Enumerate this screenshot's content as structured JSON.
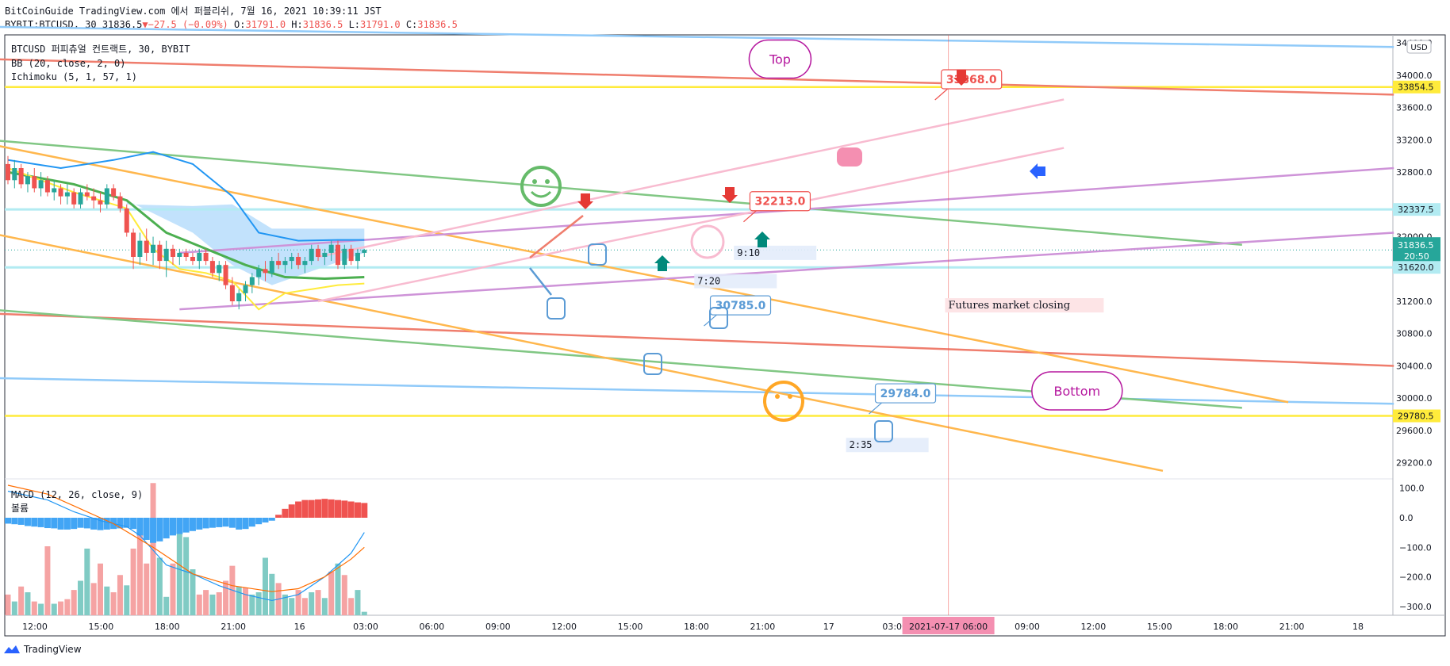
{
  "header": {
    "publisher_line": "BitCoinGuide TradingView.com 에서 퍼블리쉬, 7월 16, 2021 10:39:11 JST",
    "symbol": "BYBIT:BTCUSD, 30",
    "last": "31836.5",
    "change": "−27.5 (−0.09%)",
    "o_label": "O:",
    "o": "31791.0",
    "h_label": "H:",
    "h": "31836.5",
    "l_label": "L:",
    "l": "31791.0",
    "c_label": "C:",
    "c": "31836.5"
  },
  "legend": {
    "title": "BTCUSD 퍼피츄얼 컨트랙트, 30, BYBIT",
    "bb": "BB (20, close, 2, 0)",
    "ichimoku": "Ichimoku (5, 1, 57, 1)",
    "macd": "MACD (12, 26, close, 9)",
    "volume": "볼륨"
  },
  "currency": "USD",
  "footer": {
    "brand": "TradingView"
  },
  "colors": {
    "up": "#26a69a",
    "down": "#ef5350",
    "bb_mid": "#4caf50",
    "bb_band": "#2196f3",
    "ichimoku": "#ffeb3b",
    "kumo": "#90caf9",
    "hline": "#ffeb3b",
    "cyan_line": "#b2ebf2"
  },
  "chart_data": {
    "type": "candlestick",
    "x_tick_labels": [
      "12:00",
      "15:00",
      "18:00",
      "21:00",
      "16",
      "03:00",
      "06:00",
      "09:00",
      "12:00",
      "15:00",
      "18:00",
      "21:00",
      "17",
      "03:00",
      "06:00",
      "09:00",
      "12:00",
      "15:00",
      "18:00",
      "21:00",
      "18"
    ],
    "crosshair_time_label": "2021-07-17 06:00",
    "y_tick_labels": [
      34400.0,
      34000.0,
      33600.0,
      33200.0,
      32800.0,
      32000.0,
      31200.0,
      30800.0,
      30400.0,
      30000.0,
      29600.0,
      29200.0
    ],
    "y_range": [
      29000,
      34500
    ],
    "price_labels": [
      {
        "value": "33854.5",
        "kind": "horizontal-line"
      },
      {
        "value": "32337.5",
        "kind": "horizontal-line"
      },
      {
        "value": "31836.5",
        "kind": "last-price",
        "countdown": "20:50"
      },
      {
        "value": "31620.0",
        "kind": "horizontal-line"
      },
      {
        "value": "29780.5",
        "kind": "horizontal-line"
      }
    ],
    "candles": [
      {
        "o": 32900,
        "h": 33000,
        "l": 32650,
        "c": 32700
      },
      {
        "o": 32700,
        "h": 32950,
        "l": 32600,
        "c": 32850
      },
      {
        "o": 32850,
        "h": 32900,
        "l": 32600,
        "c": 32650
      },
      {
        "o": 32650,
        "h": 32800,
        "l": 32550,
        "c": 32750
      },
      {
        "o": 32750,
        "h": 32850,
        "l": 32550,
        "c": 32600
      },
      {
        "o": 32600,
        "h": 32800,
        "l": 32500,
        "c": 32700
      },
      {
        "o": 32700,
        "h": 32750,
        "l": 32500,
        "c": 32550
      },
      {
        "o": 32550,
        "h": 32700,
        "l": 32450,
        "c": 32600
      },
      {
        "o": 32600,
        "h": 32650,
        "l": 32400,
        "c": 32500
      },
      {
        "o": 32500,
        "h": 32650,
        "l": 32400,
        "c": 32550
      },
      {
        "o": 32550,
        "h": 32600,
        "l": 32350,
        "c": 32400
      },
      {
        "o": 32400,
        "h": 32600,
        "l": 32350,
        "c": 32550
      },
      {
        "o": 32550,
        "h": 32650,
        "l": 32450,
        "c": 32500
      },
      {
        "o": 32500,
        "h": 32600,
        "l": 32350,
        "c": 32450
      },
      {
        "o": 32450,
        "h": 32550,
        "l": 32300,
        "c": 32400
      },
      {
        "o": 32400,
        "h": 32650,
        "l": 32350,
        "c": 32600
      },
      {
        "o": 32600,
        "h": 32650,
        "l": 32450,
        "c": 32500
      },
      {
        "o": 32500,
        "h": 32550,
        "l": 32300,
        "c": 32350
      },
      {
        "o": 32350,
        "h": 32400,
        "l": 32000,
        "c": 32050
      },
      {
        "o": 32050,
        "h": 32100,
        "l": 31600,
        "c": 31750
      },
      {
        "o": 31750,
        "h": 32050,
        "l": 31650,
        "c": 31950
      },
      {
        "o": 31950,
        "h": 32100,
        "l": 31700,
        "c": 31800
      },
      {
        "o": 31800,
        "h": 32000,
        "l": 31650,
        "c": 31900
      },
      {
        "o": 31900,
        "h": 31950,
        "l": 31600,
        "c": 31700
      },
      {
        "o": 31700,
        "h": 31950,
        "l": 31500,
        "c": 31850
      },
      {
        "o": 31850,
        "h": 31900,
        "l": 31650,
        "c": 31750
      },
      {
        "o": 31750,
        "h": 31850,
        "l": 31650,
        "c": 31800
      },
      {
        "o": 31800,
        "h": 31850,
        "l": 31700,
        "c": 31750
      },
      {
        "o": 31750,
        "h": 31800,
        "l": 31650,
        "c": 31700
      },
      {
        "o": 31700,
        "h": 31850,
        "l": 31600,
        "c": 31800
      },
      {
        "o": 31800,
        "h": 31850,
        "l": 31650,
        "c": 31700
      },
      {
        "o": 31700,
        "h": 31750,
        "l": 31500,
        "c": 31550
      },
      {
        "o": 31550,
        "h": 31700,
        "l": 31450,
        "c": 31650
      },
      {
        "o": 31650,
        "h": 31700,
        "l": 31350,
        "c": 31400
      },
      {
        "o": 31400,
        "h": 31500,
        "l": 31150,
        "c": 31200
      },
      {
        "o": 31200,
        "h": 31350,
        "l": 31100,
        "c": 31300
      },
      {
        "o": 31300,
        "h": 31450,
        "l": 31200,
        "c": 31400
      },
      {
        "o": 31400,
        "h": 31550,
        "l": 31300,
        "c": 31500
      },
      {
        "o": 31500,
        "h": 31650,
        "l": 31400,
        "c": 31600
      },
      {
        "o": 31600,
        "h": 31700,
        "l": 31450,
        "c": 31550
      },
      {
        "o": 31550,
        "h": 31750,
        "l": 31500,
        "c": 31700
      },
      {
        "o": 31700,
        "h": 31800,
        "l": 31600,
        "c": 31650
      },
      {
        "o": 31650,
        "h": 31750,
        "l": 31550,
        "c": 31700
      },
      {
        "o": 31700,
        "h": 31800,
        "l": 31600,
        "c": 31750
      },
      {
        "o": 31750,
        "h": 31800,
        "l": 31600,
        "c": 31650
      },
      {
        "o": 31650,
        "h": 31750,
        "l": 31550,
        "c": 31700
      },
      {
        "o": 31700,
        "h": 31900,
        "l": 31650,
        "c": 31850
      },
      {
        "o": 31850,
        "h": 31900,
        "l": 31700,
        "c": 31750
      },
      {
        "o": 31750,
        "h": 31850,
        "l": 31650,
        "c": 31800
      },
      {
        "o": 31800,
        "h": 31950,
        "l": 31700,
        "c": 31900
      },
      {
        "o": 31900,
        "h": 31950,
        "l": 31600,
        "c": 31650
      },
      {
        "o": 31650,
        "h": 31900,
        "l": 31600,
        "c": 31850
      },
      {
        "o": 31850,
        "h": 31900,
        "l": 31650,
        "c": 31700
      },
      {
        "o": 31700,
        "h": 31850,
        "l": 31600,
        "c": 31800
      },
      {
        "o": 31800,
        "h": 31850,
        "l": 31750,
        "c": 31836.5
      }
    ],
    "bb_mid": [
      [
        0,
        32800
      ],
      [
        10,
        32650
      ],
      [
        18,
        32450
      ],
      [
        24,
        32050
      ],
      [
        30,
        31850
      ],
      [
        36,
        31650
      ],
      [
        42,
        31500
      ],
      [
        48,
        31480
      ],
      [
        54,
        31500
      ]
    ],
    "bb_upper": [
      [
        0,
        32950
      ],
      [
        8,
        32850
      ],
      [
        16,
        32950
      ],
      [
        22,
        33050
      ],
      [
        28,
        32900
      ],
      [
        34,
        32500
      ],
      [
        38,
        32050
      ],
      [
        44,
        31950
      ],
      [
        50,
        31960
      ],
      [
        54,
        31960
      ]
    ],
    "ichimoku_line": [
      [
        0,
        32850
      ],
      [
        10,
        32550
      ],
      [
        18,
        32350
      ],
      [
        22,
        31850
      ],
      [
        26,
        31600
      ],
      [
        30,
        31550
      ],
      [
        34,
        31450
      ],
      [
        38,
        31100
      ],
      [
        42,
        31300
      ],
      [
        46,
        31350
      ],
      [
        50,
        31400
      ],
      [
        54,
        31420
      ]
    ],
    "kumo": {
      "top": [
        [
          18,
          32400
        ],
        [
          28,
          32380
        ],
        [
          34,
          32400
        ],
        [
          40,
          32100
        ],
        [
          54,
          32100
        ]
      ],
      "bottom": [
        [
          18,
          32450
        ],
        [
          28,
          32050
        ],
        [
          34,
          31650
        ],
        [
          40,
          31400
        ],
        [
          54,
          31800
        ]
      ]
    },
    "trendlines": [
      {
        "name": "blue-top-line",
        "color": "#90caf9",
        "from": [
          -3,
          34600
        ],
        "to": [
          210,
          34350
        ]
      },
      {
        "name": "red-top-line",
        "color": "#ef7d6d",
        "from": [
          -3,
          34200
        ],
        "to": [
          210,
          33760
        ]
      },
      {
        "name": "blue-bottom-line",
        "color": "#90caf9",
        "from": [
          -3,
          30250
        ],
        "to": [
          210,
          29930
        ]
      },
      {
        "name": "red-mid-line",
        "color": "#ef7d6d",
        "from": [
          -3,
          31050
        ],
        "to": [
          210,
          30400
        ]
      },
      {
        "name": "green-upper-line",
        "color": "#81c784",
        "from": [
          -3,
          33200
        ],
        "to": [
          187,
          31900
        ]
      },
      {
        "name": "green-lower-line",
        "color": "#81c784",
        "from": [
          -3,
          31100
        ],
        "to": [
          187,
          29880
        ]
      },
      {
        "name": "orange-upper-line",
        "color": "#ffb74d",
        "from": [
          -3,
          33150
        ],
        "to": [
          194,
          29950
        ]
      },
      {
        "name": "orange-lower-line",
        "color": "#ffb74d",
        "from": [
          -3,
          32050
        ],
        "to": [
          175,
          29100
        ]
      },
      {
        "name": "purple-upper-line",
        "color": "#ce93d8",
        "from": [
          26,
          31800
        ],
        "to": [
          210,
          32850
        ]
      },
      {
        "name": "purple-lower-line",
        "color": "#ce93d8",
        "from": [
          26,
          31100
        ],
        "to": [
          210,
          32050
        ]
      },
      {
        "name": "pink-upper-line",
        "color": "#f8bbd0",
        "from": [
          47,
          31750
        ],
        "to": [
          160,
          33700
        ]
      },
      {
        "name": "pink-lower-line",
        "color": "#f8bbd0",
        "from": [
          47,
          31200
        ],
        "to": [
          160,
          33100
        ]
      }
    ],
    "hlines": [
      33854.5,
      29780.5
    ],
    "cyan_lines": [
      32337.5,
      31620.0
    ],
    "crosshair_x": 142.5,
    "annotations": {
      "price_callouts": [
        {
          "text": "33868.0",
          "color": "#ef5350",
          "x": 146,
          "y": 33950
        },
        {
          "text": "32213.0",
          "color": "#ef5350",
          "x": 117,
          "y": 32440
        },
        {
          "text": "30785.0",
          "color": "#5b9bd5",
          "x": 111,
          "y": 31150
        },
        {
          "text": "29784.0",
          "color": "#5b9bd5",
          "x": 136,
          "y": 30060
        }
      ],
      "bubbles": [
        {
          "text": "Top",
          "x": 117,
          "y": 34200,
          "color": "#b5179e"
        },
        {
          "text": "Bottom",
          "x": 162,
          "y": 30090,
          "color": "#b5179e"
        }
      ],
      "time_boxes": [
        {
          "text": "9:10",
          "x": 110,
          "y": 31800
        },
        {
          "text": "7:20",
          "x": 104,
          "y": 31450
        },
        {
          "text": "2:35",
          "x": 127,
          "y": 29420
        }
      ],
      "text_box": {
        "text": "Futures market closing",
        "x": 142,
        "y": 31150
      }
    },
    "volume": [
      {
        "v": 18,
        "up": false
      },
      {
        "v": 12,
        "up": true
      },
      {
        "v": 25,
        "up": false
      },
      {
        "v": 20,
        "up": true
      },
      {
        "v": 12,
        "up": false
      },
      {
        "v": 10,
        "up": true
      },
      {
        "v": 60,
        "up": false
      },
      {
        "v": 10,
        "up": true
      },
      {
        "v": 12,
        "up": false
      },
      {
        "v": 14,
        "up": false
      },
      {
        "v": 22,
        "up": false
      },
      {
        "v": 30,
        "up": true
      },
      {
        "v": 58,
        "up": true
      },
      {
        "v": 28,
        "up": false
      },
      {
        "v": 45,
        "up": false
      },
      {
        "v": 25,
        "up": true
      },
      {
        "v": 20,
        "up": false
      },
      {
        "v": 35,
        "up": false
      },
      {
        "v": 26,
        "up": true
      },
      {
        "v": 58,
        "up": false
      },
      {
        "v": 82,
        "up": false
      },
      {
        "v": 45,
        "up": false
      },
      {
        "v": 115,
        "up": false
      },
      {
        "v": 50,
        "up": true
      },
      {
        "v": 16,
        "up": true
      },
      {
        "v": 45,
        "up": false
      },
      {
        "v": 75,
        "up": true
      },
      {
        "v": 68,
        "up": true
      },
      {
        "v": 40,
        "up": true
      },
      {
        "v": 18,
        "up": false
      },
      {
        "v": 22,
        "up": false
      },
      {
        "v": 18,
        "up": true
      },
      {
        "v": 20,
        "up": false
      },
      {
        "v": 30,
        "up": false
      },
      {
        "v": 43,
        "up": false
      },
      {
        "v": 25,
        "up": true
      },
      {
        "v": 24,
        "up": false
      },
      {
        "v": 18,
        "up": true
      },
      {
        "v": 20,
        "up": true
      },
      {
        "v": 50,
        "up": true
      },
      {
        "v": 36,
        "up": true
      },
      {
        "v": 28,
        "up": false
      },
      {
        "v": 18,
        "up": true
      },
      {
        "v": 15,
        "up": true
      },
      {
        "v": 22,
        "up": false
      },
      {
        "v": 15,
        "up": false
      },
      {
        "v": 20,
        "up": true
      },
      {
        "v": 22,
        "up": false
      },
      {
        "v": 15,
        "up": true
      },
      {
        "v": 38,
        "up": false
      },
      {
        "v": 45,
        "up": true
      },
      {
        "v": 35,
        "up": false
      },
      {
        "v": 15,
        "up": false
      },
      {
        "v": 22,
        "up": true
      },
      {
        "v": 3,
        "up": true
      }
    ],
    "macd": {
      "y_ticks": [
        "100.0",
        "0.0",
        "−100.0",
        "−200.0",
        "−300.0"
      ],
      "y_range": [
        -330,
        110
      ],
      "hist": [
        -20,
        -22,
        -24,
        -28,
        -30,
        -32,
        -35,
        -36,
        -40,
        -40,
        -38,
        -34,
        -36,
        -40,
        -42,
        -40,
        -38,
        -36,
        -34,
        -38,
        -60,
        -75,
        -85,
        -80,
        -70,
        -60,
        -55,
        -50,
        -45,
        -40,
        -36,
        -34,
        -32,
        -30,
        -34,
        -40,
        -38,
        -30,
        -22,
        -16,
        -10,
        10,
        30,
        45,
        55,
        60,
        60,
        62,
        64,
        62,
        60,
        58,
        55,
        52,
        50
      ],
      "macd_line": [
        [
          0,
          90
        ],
        [
          6,
          60
        ],
        [
          10,
          20
        ],
        [
          14,
          -10
        ],
        [
          18,
          -30
        ],
        [
          20,
          -60
        ],
        [
          24,
          -160
        ],
        [
          28,
          -190
        ],
        [
          32,
          -230
        ],
        [
          36,
          -260
        ],
        [
          40,
          -280
        ],
        [
          44,
          -260
        ],
        [
          48,
          -200
        ],
        [
          52,
          -120
        ],
        [
          54,
          -50
        ]
      ],
      "signal_line": [
        [
          0,
          110
        ],
        [
          6,
          80
        ],
        [
          10,
          40
        ],
        [
          16,
          -20
        ],
        [
          22,
          -100
        ],
        [
          28,
          -190
        ],
        [
          34,
          -230
        ],
        [
          40,
          -250
        ],
        [
          44,
          -240
        ],
        [
          48,
          -200
        ],
        [
          52,
          -140
        ],
        [
          54,
          -100
        ]
      ]
    }
  }
}
